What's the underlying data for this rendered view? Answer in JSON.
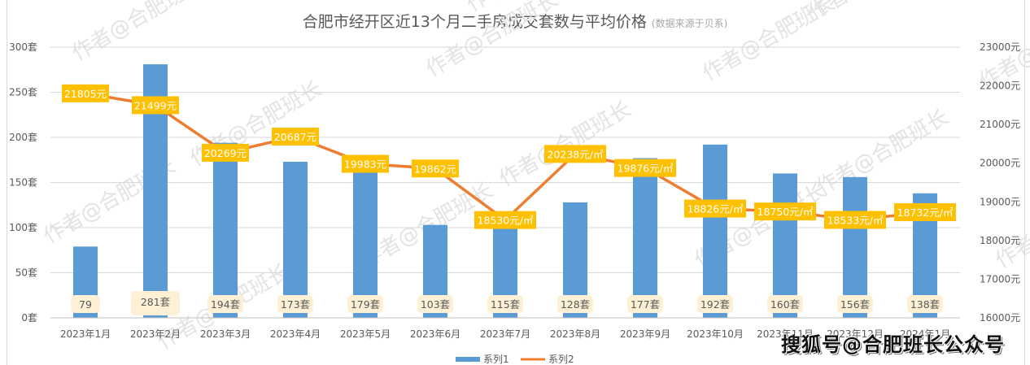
{
  "chart_data": {
    "type": "bar+line",
    "title": "合肥市经开区近13个月二手房成交套数与平均价格",
    "subtitle": "(数据来源于贝系)",
    "categories": [
      "2023年1月",
      "2023年2月",
      "2023年3月",
      "2023年4月",
      "2023年5月",
      "2023年6月",
      "2023年7月",
      "2023年8月",
      "2023年9月",
      "2023年10月",
      "2023年11月",
      "2023年12月",
      "2024年1月"
    ],
    "series": [
      {
        "name": "系列1",
        "type": "bar",
        "axis": "left",
        "color": "#5b9bd5",
        "values": [
          79,
          281,
          194,
          173,
          179,
          103,
          115,
          128,
          177,
          192,
          160,
          156,
          138
        ],
        "labels": [
          "79",
          "281套",
          "194套",
          "173套",
          "179套",
          "103套",
          "115套",
          "128套",
          "177套",
          "192套",
          "160套",
          "156套",
          "138套"
        ]
      },
      {
        "name": "系列2",
        "type": "line",
        "axis": "right",
        "color": "#ed7d31",
        "values": [
          21805,
          21499,
          20269,
          20687,
          19983,
          19862,
          18530,
          20238,
          19876,
          18826,
          18750,
          18533,
          18732
        ],
        "labels": [
          "21805元",
          "21499元",
          "20269元",
          "20687元",
          "19983元",
          "19862元",
          "18530元/㎡",
          "20238元/㎡",
          "19876元/㎡",
          "18826元/㎡",
          "18750元/㎡",
          "18533元/㎡",
          "18732元/㎡"
        ]
      }
    ],
    "y_left": {
      "ticks": [
        "0套",
        "50套",
        "100套",
        "150套",
        "200套",
        "250套",
        "300套"
      ],
      "min": 0,
      "max": 300,
      "step": 50
    },
    "y_right": {
      "ticks": [
        "16000元",
        "17000元",
        "18000元",
        "19000元",
        "20000元",
        "21000元",
        "22000元",
        "23000元"
      ],
      "min": 16000,
      "max": 23000,
      "step": 1000
    },
    "grid": true,
    "legend_position": "bottom"
  },
  "legend": {
    "items": [
      {
        "label": "系列1",
        "color": "#5b9bd5"
      },
      {
        "label": "系列2",
        "color": "#ed7d31"
      }
    ]
  },
  "watermark": {
    "text": "作者@合肥班长",
    "footer": "搜狐号@合肥班长公众号"
  },
  "colors": {
    "bar": "#5b9bd5",
    "line": "#ed7d31",
    "line_label_bg": "#ffc000",
    "bar_label_bg": "#fdf0d5",
    "grid": "#d9d9d9",
    "axis_text": "#595959"
  }
}
